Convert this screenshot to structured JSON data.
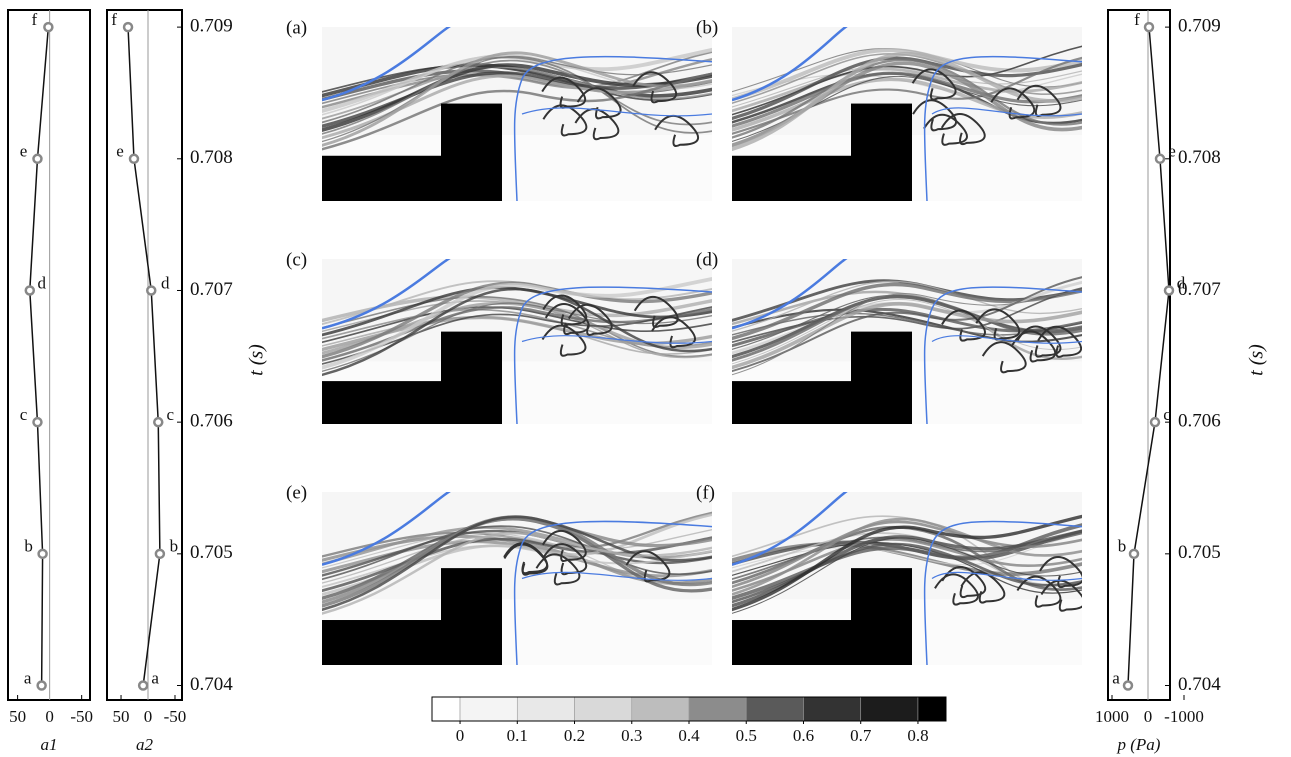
{
  "chart_data": [
    {
      "type": "line",
      "xlabel": "a1",
      "xlim": [
        65,
        -63
      ],
      "xticks": [
        50,
        0,
        -50
      ],
      "ylim": [
        0.70389,
        0.70913
      ],
      "t": [
        0.704,
        0.705,
        0.706,
        0.707,
        0.708,
        0.709
      ],
      "values": [
        12.5,
        11,
        19,
        31,
        19,
        2
      ],
      "point_labels": [
        "a",
        "b",
        "c",
        "d",
        "e",
        "f"
      ],
      "color": "#111111",
      "marker_color": "#888888"
    },
    {
      "type": "line",
      "xlabel": "a2",
      "ylabel": "t (s)",
      "xlim": [
        76,
        -63
      ],
      "xticks": [
        50,
        0,
        -50
      ],
      "ylim": [
        0.70389,
        0.70913
      ],
      "yticks": [
        0.704,
        0.705,
        0.706,
        0.707,
        0.708,
        0.709
      ],
      "t": [
        0.704,
        0.705,
        0.706,
        0.707,
        0.708,
        0.709
      ],
      "values": [
        9,
        -22,
        -19,
        -6,
        26,
        37
      ],
      "point_labels": [
        "a",
        "b",
        "c",
        "d",
        "e",
        "f"
      ],
      "color": "#111111",
      "marker_color": "#888888"
    },
    {
      "type": "line",
      "xlabel": "p (Pa)",
      "ylabel": "t (s)",
      "xlim": [
        1111,
        -611
      ],
      "xticks": [
        1000,
        0,
        -1000
      ],
      "ylim": [
        0.70389,
        0.70913
      ],
      "yticks": [
        0.704,
        0.705,
        0.706,
        0.707,
        0.708,
        0.709
      ],
      "t": [
        0.704,
        0.705,
        0.706,
        0.707,
        0.708,
        0.709
      ],
      "values": [
        556,
        389,
        -194,
        -583,
        -333,
        -28
      ],
      "point_labels": [
        "a",
        "b",
        "c",
        "d",
        "e",
        "f"
      ],
      "color": "#111111",
      "marker_color": "#888888"
    },
    {
      "type": "colorbar",
      "xlim": [
        -0.049,
        0.849
      ],
      "xticks": [
        0,
        0.1,
        0.2,
        0.3,
        0.4,
        0.5,
        0.6,
        0.7,
        0.8
      ],
      "colors": [
        "#ffffff",
        "#f4f4f4",
        "#e8e8e8",
        "#d9d9d9",
        "#bdbdbd",
        "#8c8c8c",
        "#5a5a5a",
        "#333333",
        "#1c1c1c",
        "#000000"
      ]
    }
  ],
  "panels": [
    "(a)",
    "(b)",
    "(c)",
    "(d)",
    "(e)",
    "(f)"
  ]
}
